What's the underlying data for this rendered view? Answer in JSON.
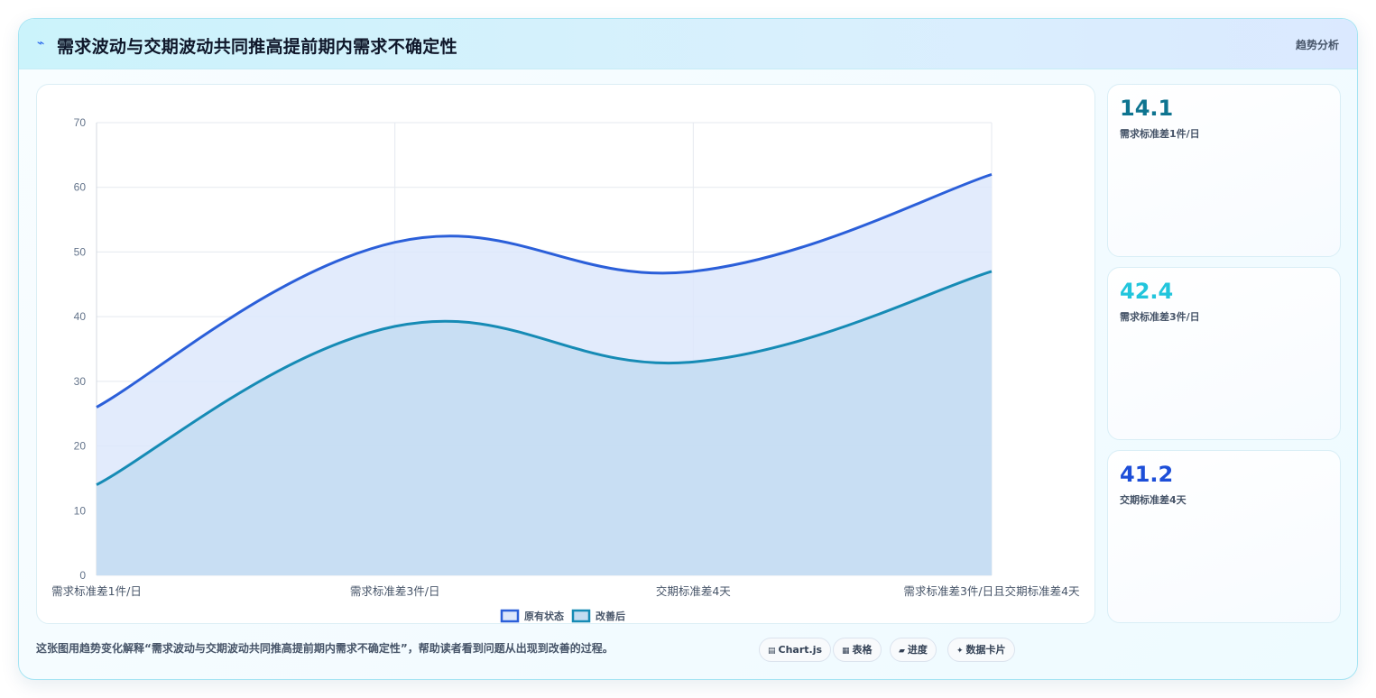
{
  "header": {
    "icon": "bolt-icon",
    "icon_glyph": "⌁",
    "title": "需求波动与交期波动共同推高提前期内需求不确定性",
    "tag": "趋势分析"
  },
  "kpis": [
    {
      "value": "14.1",
      "label": "需求标准差1件/日",
      "color": "#0e7490"
    },
    {
      "value": "42.4",
      "label": "需求标准差3件/日",
      "color": "#22c5dc"
    },
    {
      "value": "41.2",
      "label": "交期标准差4天",
      "color": "#1d4ed8"
    }
  ],
  "footer": {
    "text": "这张图用趋势变化解释“需求波动与交期波动共同推高提前期内需求不确定性”，帮助读者看到问题从出现到改善的过程。",
    "pills": [
      {
        "icon": "chart-icon",
        "glyph": "▤",
        "label": "Chart.js"
      },
      {
        "icon": "table-icon",
        "glyph": "▦",
        "label": "表格"
      },
      {
        "icon": "progress-icon",
        "glyph": "▰",
        "label": "进度"
      },
      {
        "icon": "card-icon",
        "glyph": "✦",
        "label": "数据卡片"
      }
    ]
  },
  "chart_data": {
    "type": "area",
    "categories": [
      "需求标准差1件/日",
      "需求标准差3件/日",
      "交期标准差4天",
      "需求标准差3件/日且交期标准差4天"
    ],
    "series": [
      {
        "name": "原有状态",
        "values": [
          26,
          51.5,
          47,
          62
        ],
        "color": "#2b5fd9",
        "fill": "#dde7fb"
      },
      {
        "name": "改善后",
        "values": [
          14,
          38.5,
          33,
          47
        ],
        "color": "#168bb5",
        "fill": "#c3dcf1"
      }
    ],
    "ylim": [
      0,
      70
    ],
    "yticks": [
      "0",
      "10",
      "20",
      "30",
      "40",
      "50",
      "60",
      "70"
    ],
    "grid": true,
    "legend": "bottom"
  }
}
